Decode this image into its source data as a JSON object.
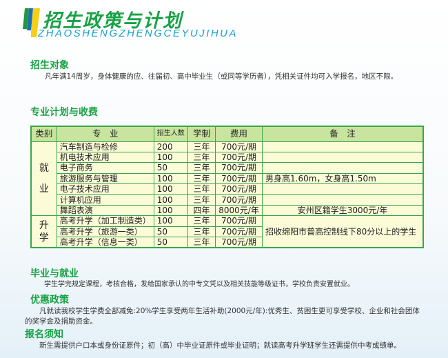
{
  "header": {
    "title": "招生政策与计划",
    "subtitle": "ZHAOSHENGZHENGCEYUJIHUA",
    "logo_colors": [
      "#1f9a3a",
      "#1b6fb8",
      "#f5cf1a"
    ]
  },
  "sections": [
    {
      "title": "招生对象",
      "text": "凡年满14周岁，身体健康的应、往届初、高中毕业生（或同等学历者），凭相关证件均可入学报名，地区不限。"
    },
    {
      "title": "专业计划与收费"
    },
    {
      "title": "毕业与就业",
      "text": "学生学完规定课程，考核合格，发给国家承认的中专文凭以及相关技能等级证书，学校负责安置就业。"
    },
    {
      "title": "优惠政策",
      "text": "凡就读我校学生学费全部减免:20%学生享受两年生活补助(2000元/年):优秀生、贫困生更可享受学校、企业和社会团体的奖学金及捐助资金。"
    },
    {
      "title": "报名须知",
      "text": "新生需提供户口本或身份证原件；初（高）中毕业证原件或毕业证明；就读高考升学班学生还需提供中考成绩单。"
    }
  ],
  "table": {
    "headers": [
      "类别",
      "专　业",
      "招生人数",
      "学制",
      "费用",
      "备　注"
    ],
    "groups": [
      "就\n业",
      "升\n学"
    ],
    "rows": [
      [
        "汽车制造与检修",
        "200",
        "三年",
        "700元/期",
        ""
      ],
      [
        "机电技术应用",
        "100",
        "三年",
        "700元/期",
        ""
      ],
      [
        "电子商务",
        "50",
        "三年",
        "700元/期",
        ""
      ],
      [
        "旅游服务与管理",
        "100",
        "三年",
        "700元/期",
        "男身高1.60m，女身高1.50m"
      ],
      [
        "电子技术应用",
        "100",
        "三年",
        "700元/期",
        ""
      ],
      [
        "计算机应用",
        "100",
        "三年",
        "700元/期",
        ""
      ],
      [
        "舞蹈表演",
        "100",
        "四年",
        "8000元/年",
        "安州区籍学生3000元/年"
      ],
      [
        "高考升学（加工制造类）",
        "100",
        "三年",
        "700元/期",
        "招收绵阳市普高控制线下80分以上的学生"
      ],
      [
        "高考升学（旅游一类）",
        "50",
        "三年",
        "700元/期",
        ""
      ],
      [
        "高考升学（信息一类）",
        "50",
        "三年",
        "700元/期",
        ""
      ]
    ]
  }
}
